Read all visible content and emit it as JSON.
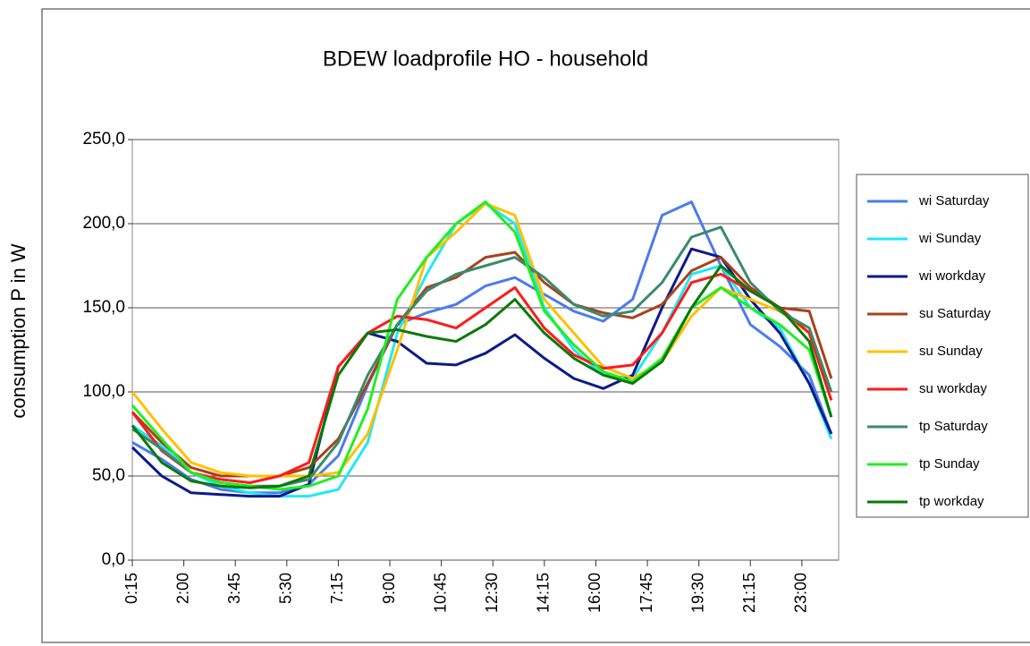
{
  "chart_data": {
    "type": "line",
    "title": "BDEW loadprofile HO - household",
    "y_label": "consumption P in W",
    "x": [
      0.25,
      1.25,
      2.25,
      3.25,
      4.25,
      5.25,
      6.25,
      7.25,
      8.25,
      9.25,
      10.25,
      11.25,
      12.25,
      13.25,
      14.25,
      15.25,
      16.25,
      17.25,
      18.25,
      19.25,
      20.25,
      21.25,
      22.25,
      23.25,
      24
    ],
    "xlim": [
      0.25,
      24.25
    ],
    "xticks": [
      {
        "value": 0.25,
        "label": "0:15"
      },
      {
        "value": 2,
        "label": "2:00"
      },
      {
        "value": 3.75,
        "label": "3:45"
      },
      {
        "value": 5.5,
        "label": "5:30"
      },
      {
        "value": 7.25,
        "label": "7:15"
      },
      {
        "value": 9,
        "label": "9:00"
      },
      {
        "value": 10.75,
        "label": "10:45"
      },
      {
        "value": 12.5,
        "label": "12:30"
      },
      {
        "value": 14.25,
        "label": "14:15"
      },
      {
        "value": 16,
        "label": "16:00"
      },
      {
        "value": 17.75,
        "label": "17:45"
      },
      {
        "value": 19.5,
        "label": "19:30"
      },
      {
        "value": 21.25,
        "label": "21:15"
      },
      {
        "value": 23,
        "label": "23:00"
      }
    ],
    "ylim": [
      0,
      250
    ],
    "yticks": [
      {
        "value": 0,
        "label": "0,0"
      },
      {
        "value": 50,
        "label": "50,0"
      },
      {
        "value": 100,
        "label": "100,0"
      },
      {
        "value": 150,
        "label": "150,0"
      },
      {
        "value": 200,
        "label": "200,0"
      },
      {
        "value": 250,
        "label": "250,0"
      }
    ],
    "grid": true,
    "legend": "right",
    "series": [
      {
        "name": "wi Saturday",
        "color": "#4a7bf0",
        "values": [
          70,
          60,
          48,
          42,
          40,
          40,
          45,
          62,
          104,
          140,
          147,
          152,
          163,
          168,
          158,
          148,
          142,
          155,
          205,
          213,
          175,
          140,
          127,
          110,
          75
        ]
      },
      {
        "name": "wi Sunday",
        "color": "#22e8f0",
        "values": [
          80,
          68,
          52,
          44,
          40,
          38,
          38,
          42,
          70,
          135,
          170,
          200,
          212,
          200,
          150,
          125,
          110,
          108,
          135,
          170,
          175,
          150,
          138,
          105,
          72
        ]
      },
      {
        "name": "wi workday",
        "color": "#0b1a8a",
        "values": [
          67,
          50,
          40,
          39,
          38,
          38,
          45,
          115,
          135,
          130,
          117,
          116,
          123,
          134,
          120,
          108,
          102,
          110,
          150,
          185,
          180,
          155,
          135,
          105,
          75
        ]
      },
      {
        "name": "su Saturday",
        "color": "#a8421c",
        "values": [
          88,
          70,
          55,
          50,
          50,
          50,
          55,
          72,
          105,
          140,
          162,
          168,
          180,
          183,
          165,
          152,
          147,
          144,
          152,
          172,
          180,
          162,
          150,
          148,
          108
        ]
      },
      {
        "name": "su Sunday",
        "color": "#ffc000",
        "values": [
          100,
          78,
          58,
          52,
          50,
          50,
          50,
          52,
          75,
          125,
          180,
          195,
          212,
          205,
          155,
          135,
          115,
          108,
          118,
          145,
          162,
          155,
          148,
          135,
          95
        ]
      },
      {
        "name": "su workday",
        "color": "#ff1a1a",
        "values": [
          88,
          65,
          52,
          48,
          46,
          50,
          58,
          115,
          135,
          145,
          143,
          138,
          150,
          162,
          138,
          122,
          114,
          116,
          135,
          165,
          170,
          160,
          150,
          135,
          95
        ]
      },
      {
        "name": "tp Saturday",
        "color": "#3a8a6e",
        "values": [
          78,
          66,
          52,
          46,
          44,
          44,
          48,
          70,
          110,
          140,
          160,
          170,
          175,
          180,
          168,
          152,
          145,
          148,
          165,
          192,
          198,
          165,
          148,
          138,
          100
        ]
      },
      {
        "name": "tp Sunday",
        "color": "#22ee22",
        "values": [
          92,
          72,
          52,
          46,
          44,
          42,
          44,
          50,
          90,
          155,
          180,
          200,
          213,
          195,
          148,
          128,
          112,
          106,
          120,
          150,
          162,
          150,
          140,
          125,
          85
        ]
      },
      {
        "name": "tp workday",
        "color": "#0a7a0a",
        "values": [
          80,
          58,
          47,
          44,
          43,
          44,
          50,
          110,
          135,
          137,
          133,
          130,
          140,
          155,
          135,
          120,
          110,
          105,
          118,
          150,
          175,
          160,
          150,
          130,
          85
        ]
      }
    ]
  }
}
